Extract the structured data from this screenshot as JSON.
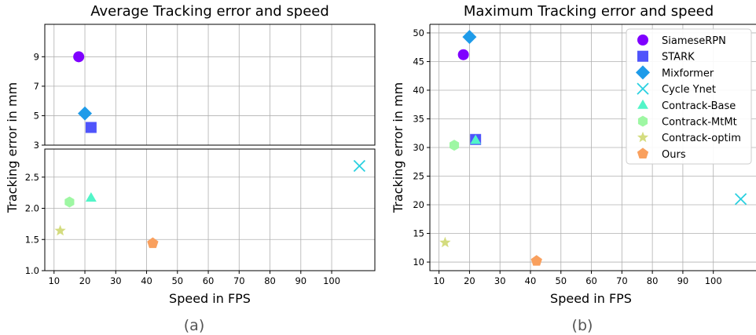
{
  "chart_data": [
    {
      "type": "scatter",
      "panel": "a",
      "caption": "(a)",
      "title": "Average Tracking error and speed",
      "xlabel": "Speed in FPS",
      "ylabel": "Tracking error in mm",
      "broken_axis": true,
      "xlim": [
        7,
        114
      ],
      "xticks": [
        10,
        20,
        30,
        40,
        50,
        60,
        70,
        80,
        90,
        100
      ],
      "upper": {
        "ylim": [
          3,
          11.2
        ],
        "yticks": [
          3,
          5,
          7,
          9
        ]
      },
      "lower": {
        "ylim": [
          1.0,
          2.95
        ],
        "yticks": [
          1.0,
          1.5,
          2.0,
          2.5
        ]
      },
      "grid": true,
      "series": [
        {
          "name": "SiameseRPN",
          "x": 18,
          "y": 9.0,
          "marker": "circle",
          "color": "#7f00ff"
        },
        {
          "name": "STARK",
          "x": 22,
          "y": 4.2,
          "marker": "square",
          "color": "#4f54fb"
        },
        {
          "name": "Mixformer",
          "x": 20,
          "y": 5.15,
          "marker": "diamond",
          "color": "#1e9be9"
        },
        {
          "name": "Cycle Ynet",
          "x": 109,
          "y": 2.68,
          "marker": "x",
          "color": "#2ad0e0"
        },
        {
          "name": "Contrack-Base",
          "x": 22,
          "y": 2.17,
          "marker": "triangle",
          "color": "#52f5c8"
        },
        {
          "name": "Contrack-MtMt",
          "x": 15,
          "y": 2.1,
          "marker": "hexagon",
          "color": "#9ef7a3"
        },
        {
          "name": "Contrack-optim",
          "x": 12,
          "y": 1.64,
          "marker": "star",
          "color": "#d4dc7f"
        },
        {
          "name": "Ours",
          "x": 42,
          "y": 1.44,
          "marker": "pentagon",
          "color": "#f9a05e"
        }
      ]
    },
    {
      "type": "scatter",
      "panel": "b",
      "caption": "(b)",
      "title": "Maximum Tracking error and speed",
      "xlabel": "Speed in FPS",
      "ylabel": "Tracking error in mm",
      "xlim": [
        7,
        114
      ],
      "ylim": [
        8.5,
        51.5
      ],
      "xticks": [
        10,
        20,
        30,
        40,
        50,
        60,
        70,
        80,
        90,
        100
      ],
      "yticks": [
        10,
        15,
        20,
        25,
        30,
        35,
        40,
        45,
        50
      ],
      "grid": true,
      "legend": "upper right",
      "series": [
        {
          "name": "SiameseRPN",
          "x": 18,
          "y": 46.2,
          "marker": "circle",
          "color": "#7f00ff"
        },
        {
          "name": "STARK",
          "x": 22,
          "y": 31.4,
          "marker": "square",
          "color": "#4f54fb"
        },
        {
          "name": "Mixformer",
          "x": 20,
          "y": 49.3,
          "marker": "diamond",
          "color": "#1e9be9"
        },
        {
          "name": "Cycle Ynet",
          "x": 109,
          "y": 21.0,
          "marker": "x",
          "color": "#2ad0e0"
        },
        {
          "name": "Contrack-Base",
          "x": 22,
          "y": 31.3,
          "marker": "triangle",
          "color": "#52f5c8"
        },
        {
          "name": "Contrack-MtMt",
          "x": 15,
          "y": 30.4,
          "marker": "hexagon",
          "color": "#9ef7a3"
        },
        {
          "name": "Contrack-optim",
          "x": 12,
          "y": 13.4,
          "marker": "star",
          "color": "#d4dc7f"
        },
        {
          "name": "Ours",
          "x": 42,
          "y": 10.2,
          "marker": "pentagon",
          "color": "#f9a05e"
        }
      ]
    }
  ]
}
